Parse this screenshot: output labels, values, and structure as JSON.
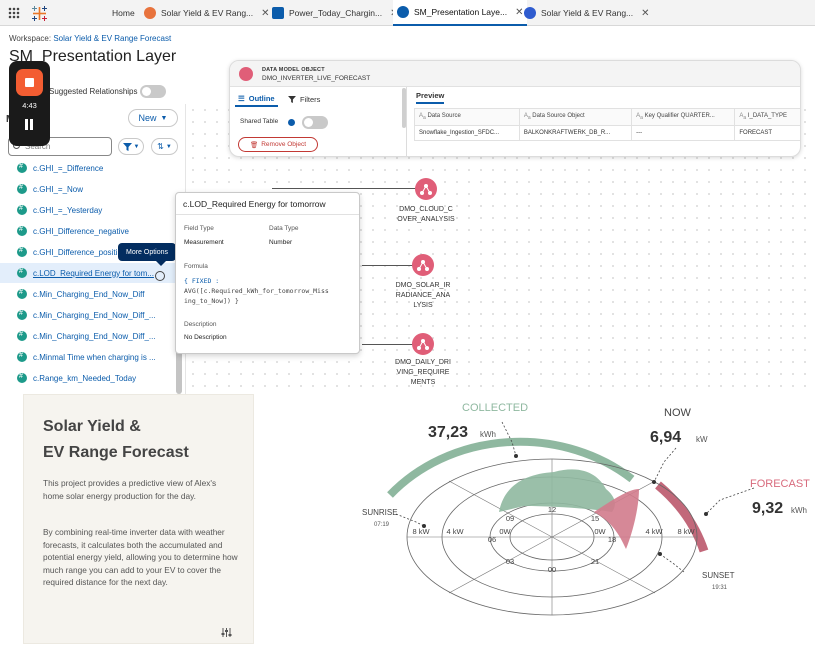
{
  "tabs": {
    "home": "Home",
    "items": [
      {
        "label": "Solar Yield & EV Rang...",
        "color": "#e8733d"
      },
      {
        "label": "Power_Today_Chargin...",
        "color": "#0b5cab"
      },
      {
        "label": "SM_Presentation Laye...",
        "color": "#0b5cab"
      },
      {
        "label": "Solar Yield & EV Rang...",
        "color": "#2f5ccf"
      }
    ]
  },
  "header": {
    "workspace_label": "Workspace:",
    "workspace_name": "Solar Yield & EV Range Forecast",
    "title": "SM_Presentation Layer"
  },
  "recorder": {
    "time": "4:43"
  },
  "suggested": {
    "label": "Suggested Relationships"
  },
  "left_panel": {
    "heading": "M",
    "new_label": "New",
    "search_placeholder": "Search",
    "more_options": "More Options",
    "fields": [
      "c.GHI_=_Difference",
      "c.GHI_=_Now",
      "c.GHI_=_Yesterday",
      "c.GHI_Difference_negative",
      "c.GHI_Difference_positi...",
      "c.LOD_Required Energy for tom...",
      "c.Min_Charging_End_Now_Diff",
      "c.Min_Charging_End_Now_Diff_...",
      "c.Min_Charging_End_Now_Diff_...",
      "c.Minmal Time when charging is ...",
      "c.Range_km_Needed_Today"
    ]
  },
  "dmo_card": {
    "kind": "DATA MODEL OBJECT",
    "name": "DMO_INVERTER_LIVE_FORECAST",
    "outline_tab": "Outline",
    "filters_tab": "Filters",
    "shared_table": "Shared Table",
    "remove_object": "Remove Object",
    "preview_tab": "Preview",
    "columns": [
      "Data Source",
      "Data Source Object",
      "Key Qualifier QUARTER...",
      "I_DATA_TYPE"
    ],
    "row": [
      "Snowflake_Ingestion_SFDC...",
      "BALKONKRAFTWERK_DB_R...",
      "---",
      "FORECAST"
    ]
  },
  "nodes": [
    {
      "line1": "DMO_CLOUD_C",
      "line2": "OVER_ANALYSIS",
      "line3": ""
    },
    {
      "line1": "DMO_SOLAR_IR",
      "line2": "RADIANCE_ANA",
      "line3": "LYSIS"
    },
    {
      "line1": "DMO_DAILY_DRI",
      "line2": "VING_REQUIRE",
      "line3": "MENTS"
    }
  ],
  "field_popup": {
    "title": "c.LOD_Required Energy for tomorrow",
    "field_type_label": "Field Type",
    "field_type_value": "Measurement",
    "data_type_label": "Data Type",
    "data_type_value": "Number",
    "formula_label": "Formula",
    "formula_line1": "{ FIXED :",
    "formula_line2": "AVG([c.Required_kWh_for_tomorrow_Miss",
    "formula_line3": "ing_to_Now]) }",
    "description_label": "Description",
    "description_value": "No Description"
  },
  "intro": {
    "title_line1": "Solar Yield &",
    "title_line2": "EV Range Forecast",
    "para1": "This project provides a predictive view of Alex's home solar energy production for the day.",
    "para2": "By combining real-time inverter data with weather forecasts, it calculates both the accumulated and potential energy yield, allowing you to determine how much range you can add to your EV to cover the required distance for the next day."
  },
  "radial": {
    "collected_label": "COLLECTED",
    "collected_value": "37,23",
    "collected_unit": "kWh",
    "now_label": "NOW",
    "now_value": "6,94",
    "now_unit": "kW",
    "forecast_label": "FORECAST",
    "forecast_value": "9,32",
    "forecast_unit": "kWh",
    "sunrise_label": "SUNRISE",
    "sunrise_time": "07:19",
    "sunset_label": "SUNSET",
    "sunset_time": "19:31",
    "hours": [
      "12",
      "15",
      "18",
      "21",
      "00",
      "03",
      "06",
      "09"
    ],
    "rings_left": [
      "8 kW",
      "4 kW",
      "0W"
    ],
    "rings_right": [
      "0W",
      "4 kW",
      "8 kW"
    ],
    "colors": {
      "collected": "#8fb8a0",
      "forecast": "#c2687a",
      "grid": "#555555",
      "accent": "#d86b7d"
    }
  }
}
